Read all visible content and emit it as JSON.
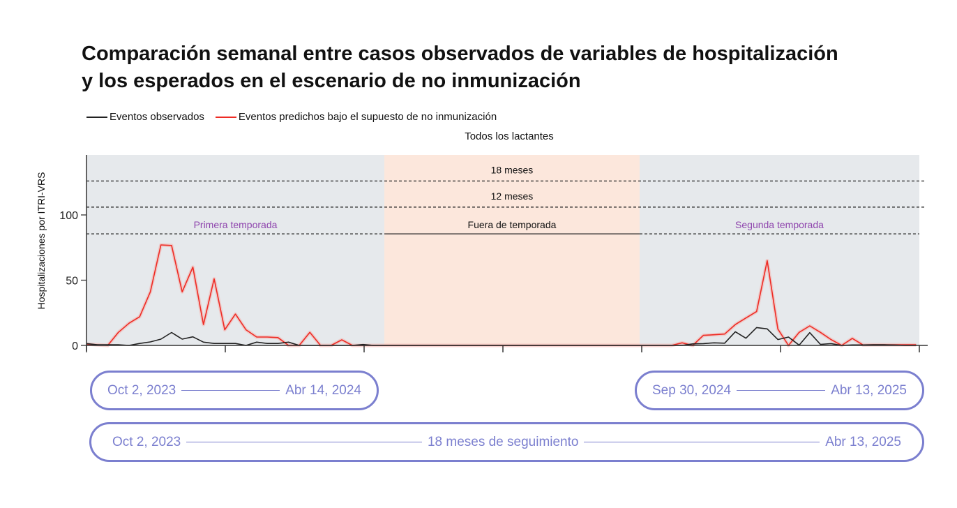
{
  "title_lines": [
    "Comparación semanal entre casos observados de variables de hospitalización",
    "y los esperados en el escenario de no inmunización"
  ],
  "legend": [
    {
      "label": "Eventos observados",
      "color": "#222222"
    },
    {
      "label": "Eventos predichos bajo el supuesto de no inmunización",
      "color": "#ee2b24"
    }
  ],
  "chart_data": {
    "type": "line",
    "title": "Todos los lactantes",
    "ylabel": "Hospitalizaciones por ITRI-VRS",
    "xlabel": "",
    "xunit": "week since Oct 2, 2023",
    "xlim": [
      0,
      78.3
    ],
    "ylim": [
      0,
      146
    ],
    "yticks": [
      0,
      50,
      100
    ],
    "ytick_labels": [
      "0",
      "50",
      "100"
    ],
    "xtick_count": 7,
    "regions": [
      {
        "label": "Primera temporada",
        "from": 0,
        "to": 28,
        "color": "#e6e9ec",
        "label_color": "#8e44ad"
      },
      {
        "label": "Fuera de temporada",
        "from": 28,
        "to": 52,
        "color": "#fce7dc",
        "label_color": "#111111"
      },
      {
        "label": "Segunda temporada",
        "from": 52,
        "to": 78.3,
        "color": "#e6e9ec",
        "label_color": "#8e44ad"
      }
    ],
    "reference_lines": [
      {
        "label": "18 meses",
        "value": 126
      },
      {
        "label": "12 meses",
        "value": 106
      },
      {
        "label": "",
        "value": 85.5
      }
    ],
    "series": [
      {
        "name": "Eventos observados",
        "color": "#222222",
        "values": [
          1.4,
          0.5,
          0.5,
          0.5,
          0,
          1.5,
          2.7,
          4.8,
          9.9,
          4.8,
          6.6,
          2.5,
          1.5,
          1.5,
          1.5,
          0,
          2.5,
          1.5,
          1.5,
          2.5,
          0,
          0,
          0,
          0,
          0,
          0,
          0.7,
          0,
          0,
          0,
          0,
          0,
          0,
          0,
          0,
          0,
          0,
          0,
          0,
          0,
          0,
          0,
          0,
          0,
          0,
          0,
          0,
          0,
          0,
          0,
          0,
          0,
          0,
          0,
          0,
          0,
          0,
          1.2,
          1.4,
          2,
          1.7,
          10.5,
          5.5,
          13.7,
          12.7,
          4.5,
          6.4,
          0.2,
          9.8,
          0.8,
          1.4,
          0,
          0.4,
          0.4,
          0.5,
          0.5,
          0.3,
          0,
          0
        ]
      },
      {
        "name": "Eventos predichos bajo el supuesto de no inmunización",
        "color": "#ee2b24",
        "values": [
          1,
          0.5,
          0,
          10,
          17,
          22,
          41,
          77,
          76.6,
          41,
          60,
          16,
          51,
          12,
          24,
          12,
          6.4,
          6.4,
          6,
          0,
          0,
          10,
          0,
          0,
          4.3,
          0,
          0,
          0,
          0,
          0,
          0,
          0,
          0,
          0,
          0,
          0,
          0,
          0,
          0,
          0,
          0,
          0,
          0,
          0,
          0,
          0,
          0,
          0,
          0,
          0,
          0,
          0,
          0,
          0,
          0,
          0,
          2,
          0,
          7.7,
          8.2,
          8.7,
          16,
          21,
          26,
          65,
          12.5,
          0,
          10,
          15,
          10,
          4.5,
          0,
          5.4,
          0.4,
          0.5,
          0.5,
          0.5,
          0.5,
          0.5
        ]
      }
    ]
  },
  "periods": {
    "first_season": {
      "start": "Oct 2, 2023",
      "end": "Abr 14, 2024"
    },
    "second_season": {
      "start": "Sep 30, 2024",
      "end": "Abr 13, 2025"
    },
    "follow_up": {
      "start": "Oct 2, 2023",
      "label": "18 meses de  seguimiento",
      "end": "Abr 13, 2025"
    },
    "color": "#7b7fcf"
  }
}
